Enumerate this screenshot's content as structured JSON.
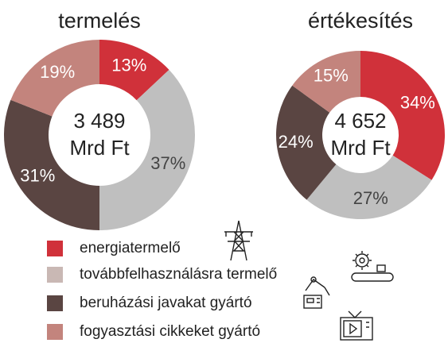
{
  "chart_data": [
    {
      "type": "pie",
      "title": "termelés",
      "center_label": [
        "3 489",
        "Mrd Ft"
      ],
      "values": [
        13,
        37,
        31,
        19
      ],
      "value_labels": [
        "13%",
        "37%",
        "31%",
        "19%"
      ],
      "colors": [
        "#d0313a",
        "#bfbfbf",
        "#5a4542",
        "#c3847d"
      ]
    },
    {
      "type": "pie",
      "title": "értékesítés",
      "center_label": [
        "4 652",
        "Mrd Ft"
      ],
      "values": [
        34,
        27,
        24,
        15
      ],
      "value_labels": [
        "34%",
        "27%",
        "24%",
        "15%"
      ],
      "colors": [
        "#d0313a",
        "#bfbfbf",
        "#5a4542",
        "#c3847d"
      ]
    }
  ],
  "legend": {
    "items": [
      "energiatermelő",
      "továbbfelhasználásra termelő",
      "beruházási javakat gyártó",
      "fogyasztási cikkeket gyártó"
    ],
    "colors": [
      "#d0313a",
      "#c9b8b4",
      "#5a4542",
      "#c3847d"
    ]
  }
}
